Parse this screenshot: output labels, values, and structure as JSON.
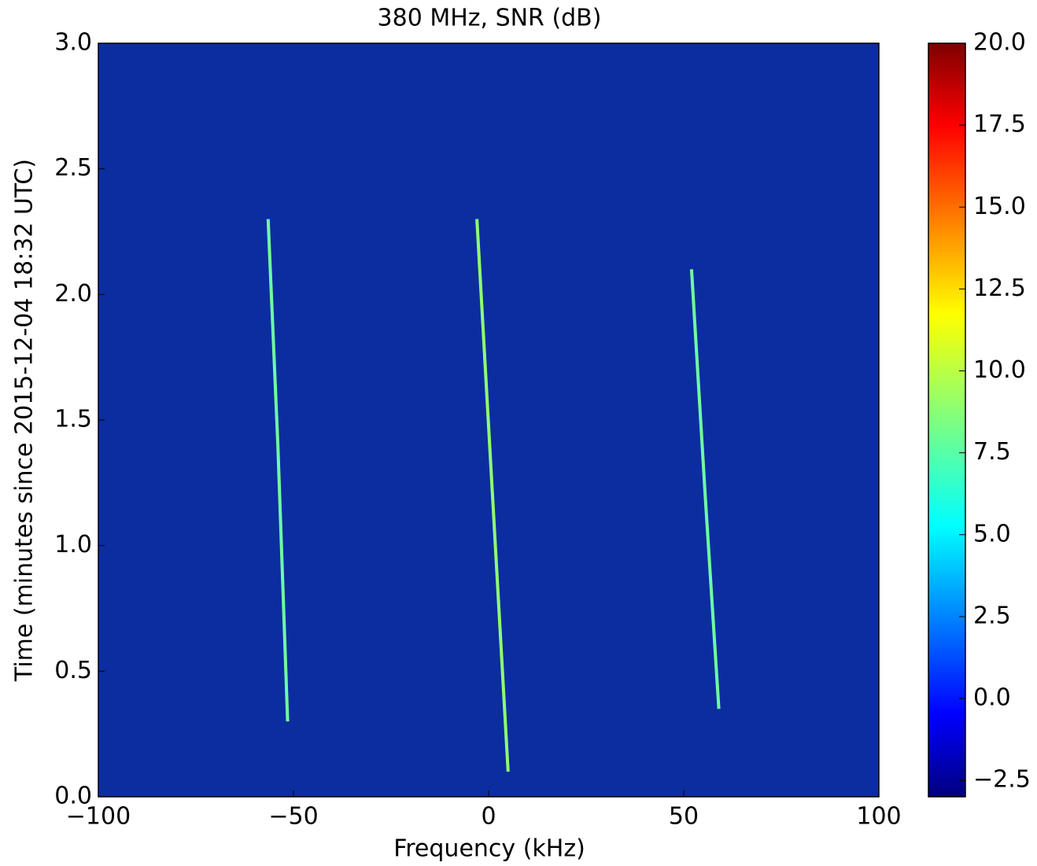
{
  "chart_data": {
    "type": "spectrogram",
    "title": "380 MHz, SNR (dB)",
    "x_label": "Frequency (kHz)",
    "y_label": "Time (minutes since 2015-12-04 18:32 UTC)",
    "xlim": [
      -100,
      100
    ],
    "xticks": [
      {
        "value": -100,
        "label": "−100"
      },
      {
        "value": -50,
        "label": "−50"
      },
      0,
      50,
      100
    ],
    "ylim": [
      0,
      3
    ],
    "yticks": [
      {
        "value": 0,
        "label": "0.0"
      },
      {
        "value": 0.5,
        "label": "0.5"
      },
      {
        "value": 1,
        "label": "1.0"
      },
      {
        "value": 1.5,
        "label": "1.5"
      },
      {
        "value": 2,
        "label": "2.0"
      },
      {
        "value": 2.5,
        "label": "2.5"
      },
      {
        "value": 3,
        "label": "3.0"
      }
    ],
    "background_color": "#0c2da0",
    "colormap": "jet",
    "clim": [
      -3,
      20
    ],
    "cticks": [
      {
        "value": -2.5,
        "label": "−2.5"
      },
      {
        "value": 0,
        "label": "0.0"
      },
      {
        "value": 2.5,
        "label": "2.5"
      },
      {
        "value": 5,
        "label": "5.0"
      },
      {
        "value": 7.5,
        "label": "7.5"
      },
      {
        "value": 10,
        "label": "10.0"
      },
      {
        "value": 12.5,
        "label": "12.5"
      },
      {
        "value": 15,
        "label": "15.0"
      },
      {
        "value": 17.5,
        "label": "17.5"
      },
      {
        "value": 20,
        "label": "20.0"
      }
    ],
    "series": [
      {
        "color": "#6fffa0",
        "x": [
          -56.5,
          -54,
          -51.5
        ],
        "y": [
          2.3,
          1.4,
          0.3
        ]
      },
      {
        "color": "#8fff70",
        "x": [
          -3,
          1,
          5
        ],
        "y": [
          2.3,
          1.2,
          0.1
        ]
      },
      {
        "color": "#6fffa0",
        "x": [
          52,
          55.5,
          59
        ],
        "y": [
          2.1,
          1.2,
          0.35
        ]
      }
    ]
  }
}
